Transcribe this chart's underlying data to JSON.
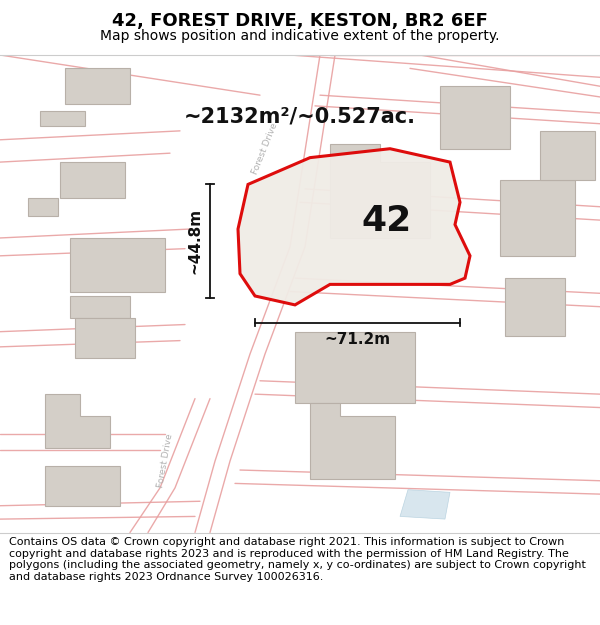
{
  "title": "42, FOREST DRIVE, KESTON, BR2 6EF",
  "subtitle": "Map shows position and indicative extent of the property.",
  "footer": "Contains OS data © Crown copyright and database right 2021. This information is subject to Crown copyright and database rights 2023 and is reproduced with the permission of HM Land Registry. The polygons (including the associated geometry, namely x, y co-ordinates) are subject to Crown copyright and database rights 2023 Ordnance Survey 100026316.",
  "area_label": "~2132m²/~0.527ac.",
  "width_label": "~71.2m",
  "height_label": "~44.8m",
  "plot_number": "42",
  "map_bg": "#f8f6f4",
  "road_line_color": "#e8a0a0",
  "building_color": "#d4cfc8",
  "building_edge_color": "#b8b0a8",
  "plot_fill": "#f0ece6",
  "plot_edge_color": "#dd0000",
  "plot_edge_width": 2.2,
  "dim_color": "#111111",
  "footer_bg": "#ffffff",
  "title_fontsize": 13,
  "subtitle_fontsize": 10,
  "footer_fontsize": 8,
  "road_label_color": "#b0b0b0",
  "road_label_size": 6.5,
  "water_color": "#c8dce8"
}
